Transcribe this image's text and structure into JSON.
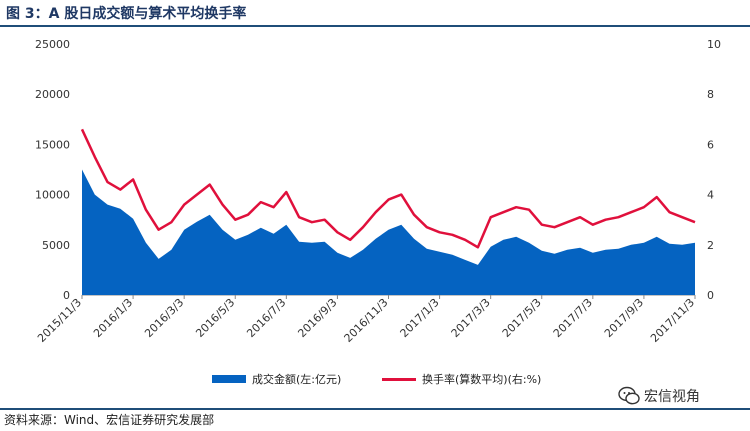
{
  "figure": {
    "title": "图 3：A 股日成交额与算术平均换手率",
    "source": "资料来源：Wind、宏信证券研究发展部",
    "watermark": "宏信视角"
  },
  "colors": {
    "area": "#0563c1",
    "line": "#e0103c",
    "title": "#1f3864",
    "rule": "#1f4e79"
  },
  "chart_data": {
    "type": "area",
    "x_tick_labels": [
      "2015/11/3",
      "2016/1/3",
      "2016/3/3",
      "2016/5/3",
      "2016/7/3",
      "2016/9/3",
      "2016/11/3",
      "2017/1/3",
      "2017/3/3",
      "2017/5/3",
      "2017/7/3",
      "2017/9/3",
      "2017/11/3"
    ],
    "x": [
      "2015/11/3",
      "2015/11/18",
      "2015/12/3",
      "2015/12/18",
      "2016/1/3",
      "2016/1/18",
      "2016/2/3",
      "2016/2/18",
      "2016/3/3",
      "2016/3/18",
      "2016/4/3",
      "2016/4/18",
      "2016/5/3",
      "2016/5/18",
      "2016/6/3",
      "2016/6/18",
      "2016/7/3",
      "2016/7/18",
      "2016/8/3",
      "2016/8/18",
      "2016/9/3",
      "2016/9/18",
      "2016/10/3",
      "2016/10/18",
      "2016/11/3",
      "2016/11/18",
      "2016/12/3",
      "2016/12/18",
      "2017/1/3",
      "2017/1/18",
      "2017/2/3",
      "2017/2/18",
      "2017/3/3",
      "2017/3/18",
      "2017/4/3",
      "2017/4/18",
      "2017/5/3",
      "2017/5/18",
      "2017/6/3",
      "2017/6/18",
      "2017/7/3",
      "2017/7/18",
      "2017/8/3",
      "2017/8/18",
      "2017/9/3",
      "2017/9/18",
      "2017/10/3",
      "2017/10/18",
      "2017/11/3"
    ],
    "y_left_label": "",
    "y_right_label": "",
    "y_left_lim": [
      0,
      25000
    ],
    "y_left_ticks": [
      0,
      5000,
      10000,
      15000,
      20000,
      25000
    ],
    "y_right_lim": [
      0,
      10
    ],
    "y_right_ticks": [
      0,
      2,
      4,
      6,
      8,
      10
    ],
    "series": [
      {
        "name": "成交金额(左:亿元)",
        "axis": "left",
        "type": "area",
        "values": [
          12500,
          10000,
          9000,
          8600,
          7600,
          5200,
          3600,
          4500,
          6500,
          7300,
          8000,
          6500,
          5500,
          6000,
          6700,
          6100,
          7000,
          5300,
          5200,
          5300,
          4200,
          3700,
          4500,
          5600,
          6500,
          7000,
          5600,
          4600,
          4300,
          4000,
          3500,
          3000,
          4800,
          5500,
          5800,
          5200,
          4400,
          4100,
          4500,
          4700,
          4200,
          4500,
          4600,
          5000,
          5200,
          5800,
          5100,
          5000,
          5200
        ]
      },
      {
        "name": "换手率(算数平均)(右:%)",
        "axis": "right",
        "type": "line",
        "values": [
          6.6,
          5.5,
          4.5,
          4.2,
          4.6,
          3.4,
          2.6,
          2.9,
          3.6,
          4.0,
          4.4,
          3.6,
          3.0,
          3.2,
          3.7,
          3.5,
          4.1,
          3.1,
          2.9,
          3.0,
          2.5,
          2.2,
          2.7,
          3.3,
          3.8,
          4.0,
          3.2,
          2.7,
          2.5,
          2.4,
          2.2,
          1.9,
          3.1,
          3.3,
          3.5,
          3.4,
          2.8,
          2.7,
          2.9,
          3.1,
          2.8,
          3.0,
          3.1,
          3.3,
          3.5,
          3.9,
          3.3,
          3.1,
          2.9
        ]
      }
    ],
    "legend_position": "bottom",
    "grid": false
  }
}
